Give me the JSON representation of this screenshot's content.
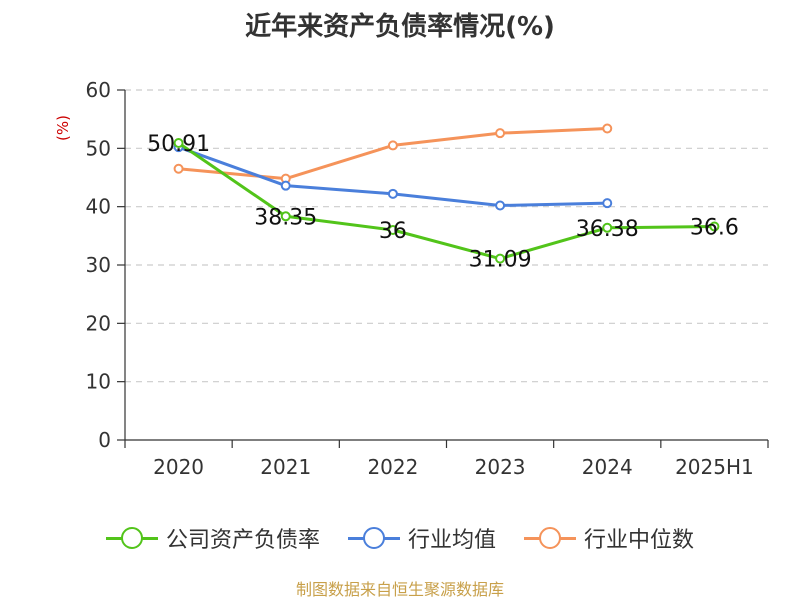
{
  "chart_data": {
    "type": "line",
    "title": "近年来资产负债率情况(%)",
    "ylabel": "(%)",
    "categories": [
      "2020",
      "2021",
      "2022",
      "2023",
      "2024",
      "2025H1"
    ],
    "ylim": [
      0,
      60
    ],
    "yticks": [
      0,
      10,
      20,
      30,
      40,
      50,
      60
    ],
    "grid": true,
    "legend_position": "bottom",
    "series": [
      {
        "name": "公司资产负债率",
        "color": "#52c41a",
        "values": [
          50.91,
          38.35,
          36,
          31.09,
          36.38,
          36.6
        ],
        "labels": [
          "50.91",
          "38.35",
          "36",
          "31.09",
          "36.38",
          "36.6"
        ]
      },
      {
        "name": "行业均值",
        "color": "#4a7fdb",
        "values": [
          50.2,
          43.6,
          42.2,
          40.2,
          40.6,
          null
        ]
      },
      {
        "name": "行业中位数",
        "color": "#f5935a",
        "values": [
          46.5,
          44.8,
          50.5,
          52.6,
          53.4,
          null
        ]
      }
    ]
  },
  "source": "制图数据来自恒生聚源数据库"
}
